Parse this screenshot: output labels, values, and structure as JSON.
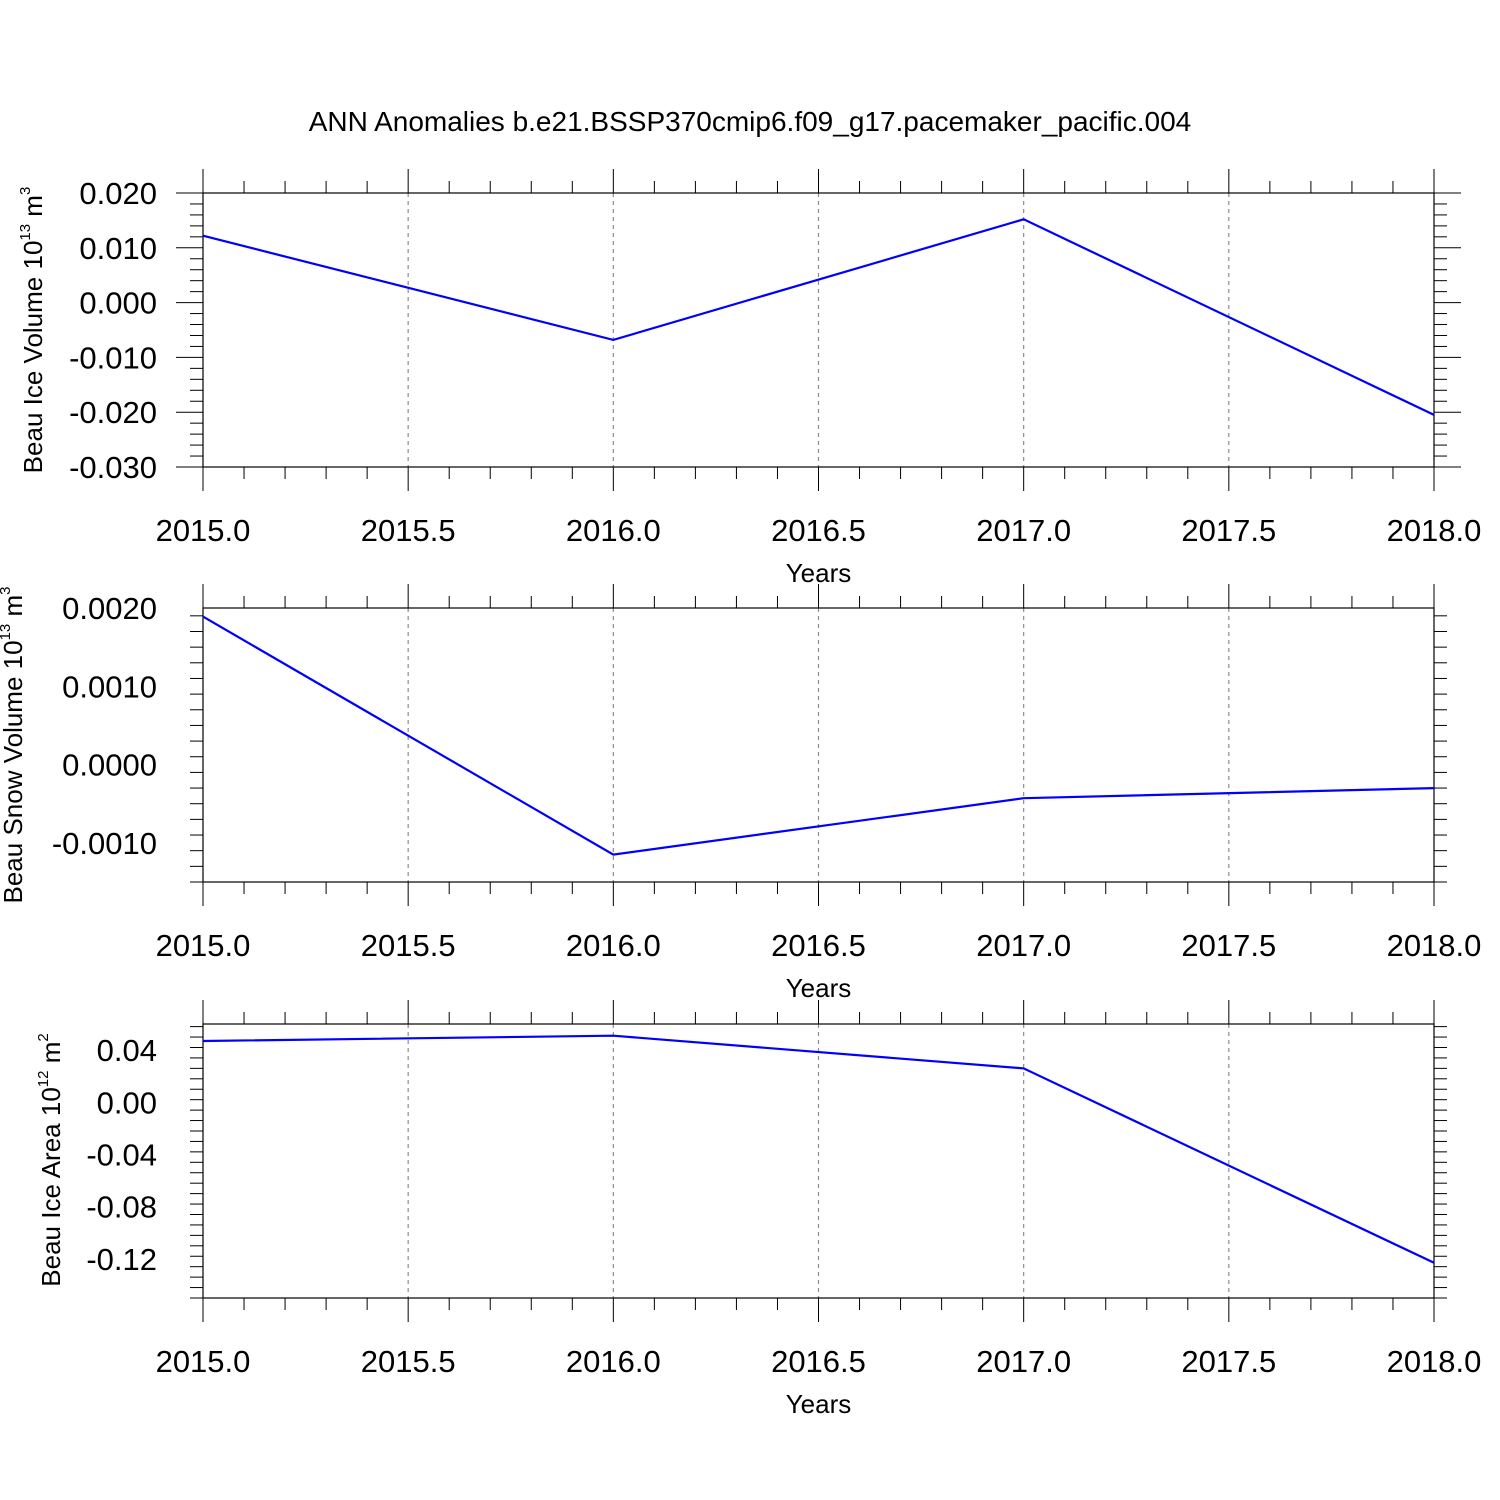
{
  "title": "ANN Anomalies b.e21.BSSP370cmip6.f09_g17.pacemaker_pacific.004",
  "chart_data": [
    {
      "type": "line",
      "xlabel": "Years",
      "ylabel_main": "Beau Ice Volume 10",
      "ylabel_exp": "13",
      "ylabel_unit": " m",
      "ylabel_unit_exp": "3",
      "xlim": [
        2015.0,
        2018.0
      ],
      "ylim": [
        -0.03,
        0.02
      ],
      "yticks": [
        0.02,
        0.01,
        0.0,
        -0.01,
        -0.02,
        -0.03
      ],
      "ytick_labels": [
        "0.020",
        "0.010",
        "0.000",
        "-0.010",
        "-0.020",
        "-0.030"
      ],
      "xticks": [
        2015.0,
        2015.5,
        2016.0,
        2016.5,
        2017.0,
        2017.5,
        2018.0
      ],
      "xtick_labels": [
        "2015.0",
        "2015.5",
        "2016.0",
        "2016.5",
        "2017.0",
        "2017.5",
        "2018.0"
      ],
      "grid": "vertical dashed",
      "series": [
        {
          "x": [
            2015,
            2016,
            2017,
            2018
          ],
          "values": [
            0.0122,
            -0.0068,
            0.0152,
            -0.0205
          ],
          "color": "#0000ff"
        }
      ]
    },
    {
      "type": "line",
      "xlabel": "Years",
      "ylabel_main": "Beau Snow Volume 10",
      "ylabel_exp": "13",
      "ylabel_unit": " m",
      "ylabel_unit_exp": "3",
      "xlim": [
        2015.0,
        2018.0
      ],
      "ylim": [
        -0.0015,
        0.002
      ],
      "yticks": [
        0.002,
        0.001,
        0.0,
        -0.001
      ],
      "ytick_labels": [
        "0.0020",
        "0.0010",
        "0.0000",
        "-0.0010"
      ],
      "xticks": [
        2015.0,
        2015.5,
        2016.0,
        2016.5,
        2017.0,
        2017.5,
        2018.0
      ],
      "xtick_labels": [
        "2015.0",
        "2015.5",
        "2016.0",
        "2016.5",
        "2017.0",
        "2017.5",
        "2018.0"
      ],
      "grid": "vertical dashed",
      "series": [
        {
          "x": [
            2015,
            2016,
            2017,
            2018
          ],
          "values": [
            0.00189,
            -0.00115,
            -0.00043,
            -0.0003
          ],
          "color": "#0000ff"
        }
      ]
    },
    {
      "type": "line",
      "xlabel": "Years",
      "ylabel_main": "Beau Ice Area 10",
      "ylabel_exp": "12",
      "ylabel_unit": " m",
      "ylabel_unit_exp": "2",
      "xlim": [
        2015.0,
        2018.0
      ],
      "ylim": [
        -0.15,
        0.06
      ],
      "yticks": [
        0.04,
        0.0,
        -0.04,
        -0.08,
        -0.12
      ],
      "ytick_labels": [
        "0.04",
        "0.00",
        "-0.04",
        "-0.08",
        "-0.12"
      ],
      "xticks": [
        2015.0,
        2015.5,
        2016.0,
        2016.5,
        2017.0,
        2017.5,
        2018.0
      ],
      "xtick_labels": [
        "2015.0",
        "2015.5",
        "2016.0",
        "2016.5",
        "2017.0",
        "2017.5",
        "2018.0"
      ],
      "grid": "vertical dashed",
      "series": [
        {
          "x": [
            2015,
            2016,
            2017,
            2018
          ],
          "values": [
            0.047,
            0.051,
            0.026,
            -0.123
          ],
          "color": "#0000ff"
        }
      ]
    }
  ]
}
